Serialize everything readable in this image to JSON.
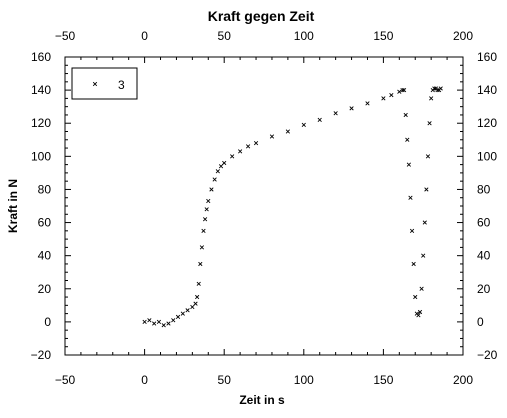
{
  "chart_data": {
    "type": "scatter",
    "title": "Kraft gegen Zeit",
    "xlabel": "Zeit in s",
    "ylabel": "Kraft in N",
    "xlim": [
      -50,
      200
    ],
    "ylim": [
      -20,
      160
    ],
    "xticks": [
      -50,
      0,
      50,
      100,
      150,
      200
    ],
    "yticks": [
      -20,
      0,
      20,
      40,
      60,
      80,
      100,
      120,
      140,
      160
    ],
    "xtick_labels": [
      "−50",
      "0",
      "50",
      "100",
      "150",
      "200"
    ],
    "ytick_labels": [
      "−20",
      "0",
      "20",
      "40",
      "60",
      "80",
      "100",
      "120",
      "140",
      "160"
    ],
    "grid": false,
    "legend_position": "top-left",
    "marker": "x",
    "color": "#000000",
    "series": [
      {
        "name": "3",
        "x": [
          0,
          3,
          6,
          9,
          12,
          15,
          18,
          21,
          24,
          27,
          30,
          32,
          33,
          34,
          35,
          36,
          37,
          38,
          39,
          40,
          42,
          44,
          46,
          48,
          50,
          55,
          60,
          65,
          70,
          80,
          90,
          100,
          110,
          120,
          130,
          140,
          150,
          155,
          160,
          162,
          163,
          164,
          165,
          166,
          167,
          168,
          169,
          170,
          171,
          172,
          173,
          174,
          175,
          176,
          177,
          178,
          179,
          180,
          181,
          182,
          183,
          184,
          185,
          186
        ],
        "y": [
          0,
          1,
          -1,
          0,
          -2,
          -1,
          1,
          3,
          5,
          7,
          9,
          11,
          15,
          23,
          35,
          45,
          55,
          62,
          68,
          73,
          80,
          86,
          91,
          94,
          96,
          100,
          103,
          106,
          108,
          112,
          115,
          119,
          122,
          126,
          129,
          132,
          135,
          137,
          139,
          140,
          140,
          125,
          110,
          95,
          75,
          55,
          35,
          15,
          5,
          4,
          6,
          20,
          40,
          60,
          80,
          100,
          120,
          135,
          140,
          141,
          141,
          140,
          140,
          141
        ]
      }
    ]
  }
}
